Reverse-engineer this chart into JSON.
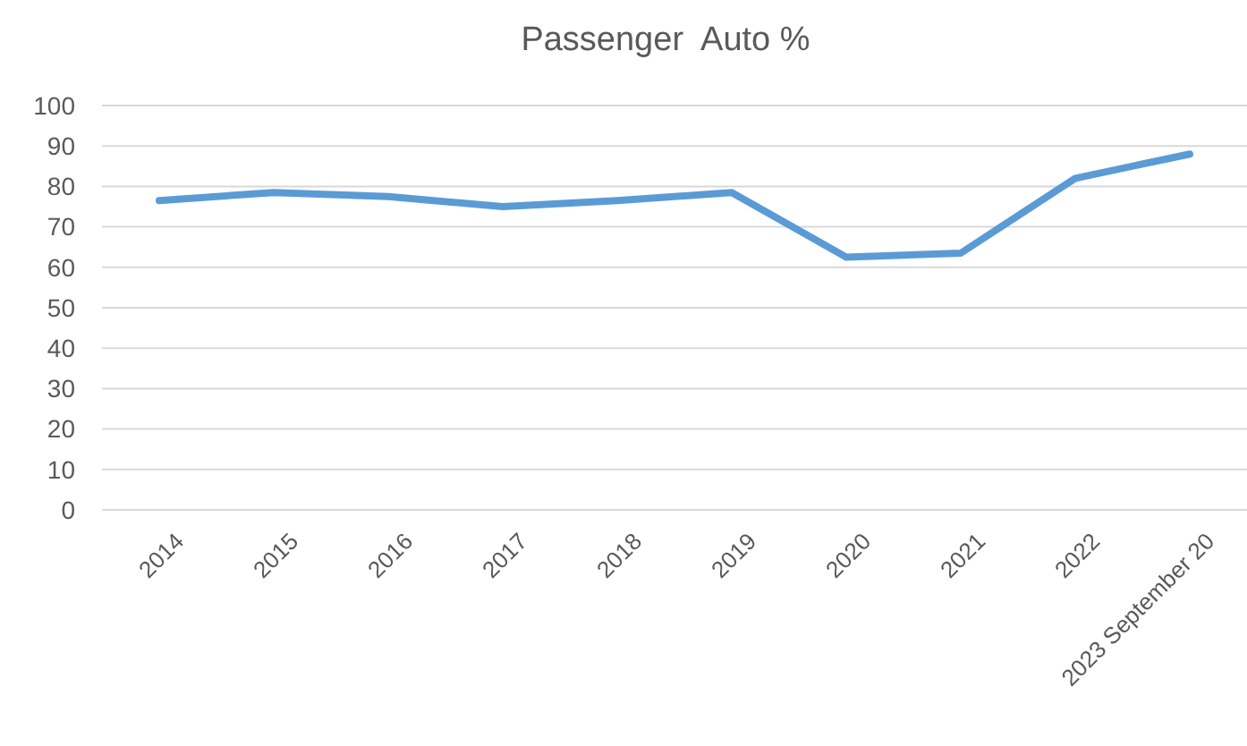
{
  "chart_data": {
    "type": "line",
    "title": "Passenger  Auto %",
    "categories": [
      "2014",
      "2015",
      "2016",
      "2017",
      "2018",
      "2019",
      "2020",
      "2021",
      "2022",
      "2023 September 20"
    ],
    "series": [
      {
        "color": "#5b9bd5",
        "values": [
          76.5,
          78.5,
          77.5,
          75,
          76.5,
          78.5,
          62.5,
          63.5,
          82,
          88
        ]
      }
    ],
    "ylim": [
      0,
      100
    ],
    "yticks": [
      0,
      10,
      20,
      30,
      40,
      50,
      60,
      70,
      80,
      90,
      100
    ],
    "grid": "y",
    "marker": "none",
    "line_style": "solid"
  }
}
